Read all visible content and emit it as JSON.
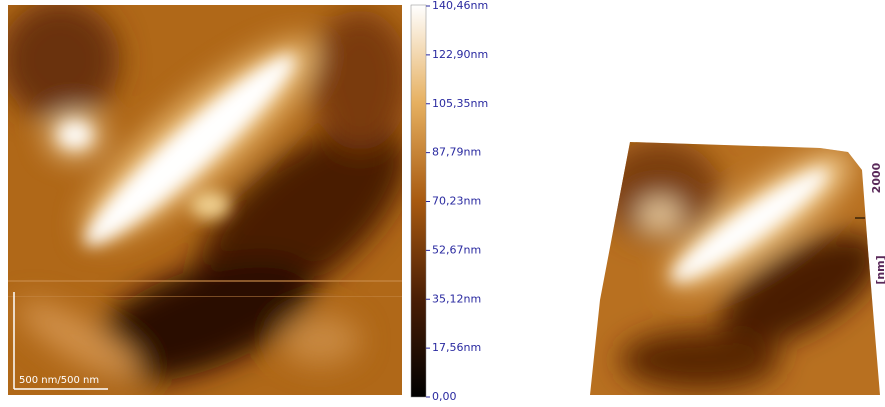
{
  "scale_bar": {
    "label": "500 nm/500 nm"
  },
  "colorbar": {
    "labels": [
      "140,46nm",
      "122,90nm",
      "105,35nm",
      "87,79nm",
      "70,23nm",
      "52,67nm",
      "35,12nm",
      "17,56nm",
      "0,00"
    ]
  },
  "surface_3d": {
    "axis_tick": "2000",
    "axis_unit": "[nm]"
  }
}
